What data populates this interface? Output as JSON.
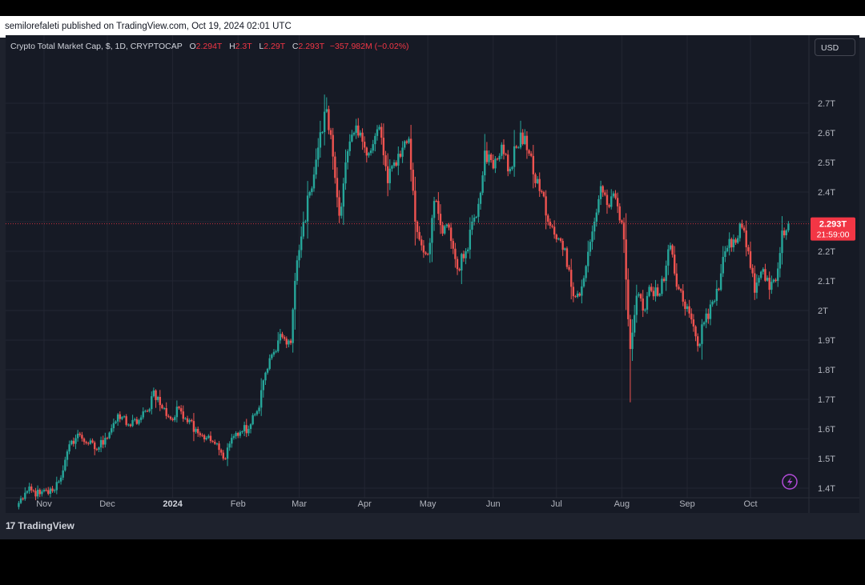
{
  "publish_bar": {
    "text": "semilorefaleti published on TradingView.com, Oct 19, 2024 02:01 UTC"
  },
  "legend": {
    "symbol": "Crypto Total Market Cap, $, 1D, CRYPTOCAP",
    "o_label": "O",
    "o_value": "2.294T",
    "h_label": "H",
    "h_value": "2.3T",
    "l_label": "L",
    "l_value": "2.29T",
    "c_label": "C",
    "c_value": "2.293T",
    "change": "−357.982M (−0.02%)"
  },
  "currency_button": {
    "label": "USD"
  },
  "price_tag": {
    "value": "2.293T",
    "countdown": "21:59:00"
  },
  "footer": {
    "brand": "TradingView",
    "logo_glyph": "17"
  },
  "colors": {
    "up": "#26a69a",
    "down": "#ef5350",
    "price_tag": "#f23645",
    "background": "#161a25",
    "grid": "#232632",
    "text": "#b2b5be"
  },
  "icons": {
    "lightning": "lightning-icon"
  },
  "chart_data": {
    "type": "candlestick",
    "title": "Crypto Total Market Cap, $, 1D, CRYPTOCAP",
    "xlabel": "",
    "ylabel": "",
    "ylim": [
      1.33,
      2.83
    ],
    "grid": true,
    "y_ticks": [
      1.4,
      1.5,
      1.6,
      1.7,
      1.8,
      1.9,
      2.0,
      2.1,
      2.2,
      2.3,
      2.4,
      2.5,
      2.6,
      2.7
    ],
    "y_tick_labels": [
      "1.4T",
      "1.5T",
      "1.6T",
      "1.7T",
      "1.8T",
      "1.9T",
      "2T",
      "2.1T",
      "2.2T",
      "2.3T",
      "2.4T",
      "2.5T",
      "2.6T",
      "2.7T"
    ],
    "x_tick_labels": [
      {
        "label": "Nov",
        "date": "2023-11-01"
      },
      {
        "label": "Dec",
        "date": "2023-12-01"
      },
      {
        "label": "2024",
        "date": "2024-01-01"
      },
      {
        "label": "Feb",
        "date": "2024-02-01"
      },
      {
        "label": "Mar",
        "date": "2024-03-01"
      },
      {
        "label": "Apr",
        "date": "2024-04-01"
      },
      {
        "label": "May",
        "date": "2024-05-01"
      },
      {
        "label": "Jun",
        "date": "2024-06-01"
      },
      {
        "label": "Jul",
        "date": "2024-07-01"
      },
      {
        "label": "Aug",
        "date": "2024-08-01"
      },
      {
        "label": "Sep",
        "date": "2024-09-01"
      },
      {
        "label": "Oct",
        "date": "2024-10-01"
      }
    ],
    "first_date": "2023-10-20",
    "last_date": "2024-10-19",
    "last_price": 2.293,
    "close_anchors": [
      [
        "2023-10-20",
        1.35
      ],
      [
        "2023-10-24",
        1.39
      ],
      [
        "2023-10-30",
        1.38
      ],
      [
        "2023-11-05",
        1.39
      ],
      [
        "2023-11-10",
        1.46
      ],
      [
        "2023-11-14",
        1.56
      ],
      [
        "2023-11-18",
        1.58
      ],
      [
        "2023-11-22",
        1.55
      ],
      [
        "2023-11-26",
        1.53
      ],
      [
        "2023-11-30",
        1.57
      ],
      [
        "2023-12-04",
        1.62
      ],
      [
        "2023-12-08",
        1.64
      ],
      [
        "2023-12-12",
        1.61
      ],
      [
        "2023-12-16",
        1.63
      ],
      [
        "2023-12-20",
        1.66
      ],
      [
        "2023-12-23",
        1.73
      ],
      [
        "2023-12-27",
        1.67
      ],
      [
        "2024-01-01",
        1.63
      ],
      [
        "2024-01-04",
        1.67
      ],
      [
        "2024-01-09",
        1.63
      ],
      [
        "2024-01-12",
        1.6
      ],
      [
        "2024-01-17",
        1.57
      ],
      [
        "2024-01-21",
        1.55
      ],
      [
        "2024-01-25",
        1.5
      ],
      [
        "2024-01-29",
        1.57
      ],
      [
        "2024-02-02",
        1.59
      ],
      [
        "2024-02-06",
        1.6
      ],
      [
        "2024-02-10",
        1.66
      ],
      [
        "2024-02-14",
        1.79
      ],
      [
        "2024-02-18",
        1.86
      ],
      [
        "2024-02-22",
        1.91
      ],
      [
        "2024-02-26",
        1.89
      ],
      [
        "2024-02-28",
        2.1
      ],
      [
        "2024-03-02",
        2.25
      ],
      [
        "2024-03-06",
        2.4
      ],
      [
        "2024-03-10",
        2.55
      ],
      [
        "2024-03-14",
        2.68
      ],
      [
        "2024-03-17",
        2.52
      ],
      [
        "2024-03-20",
        2.32
      ],
      [
        "2024-03-23",
        2.5
      ],
      [
        "2024-03-27",
        2.6
      ],
      [
        "2024-03-31",
        2.57
      ],
      [
        "2024-04-04",
        2.54
      ],
      [
        "2024-04-08",
        2.62
      ],
      [
        "2024-04-12",
        2.43
      ],
      [
        "2024-04-15",
        2.5
      ],
      [
        "2024-04-19",
        2.55
      ],
      [
        "2024-04-22",
        2.58
      ],
      [
        "2024-04-25",
        2.3
      ],
      [
        "2024-04-28",
        2.22
      ],
      [
        "2024-05-01",
        2.19
      ],
      [
        "2024-05-04",
        2.37
      ],
      [
        "2024-05-08",
        2.26
      ],
      [
        "2024-05-11",
        2.28
      ],
      [
        "2024-05-15",
        2.14
      ],
      [
        "2024-05-19",
        2.2
      ],
      [
        "2024-05-22",
        2.3
      ],
      [
        "2024-05-25",
        2.36
      ],
      [
        "2024-05-28",
        2.54
      ],
      [
        "2024-06-01",
        2.48
      ],
      [
        "2024-06-05",
        2.56
      ],
      [
        "2024-06-08",
        2.47
      ],
      [
        "2024-06-12",
        2.55
      ],
      [
        "2024-06-16",
        2.59
      ],
      [
        "2024-06-20",
        2.46
      ],
      [
        "2024-06-24",
        2.4
      ],
      [
        "2024-06-27",
        2.3
      ],
      [
        "2024-07-01",
        2.24
      ],
      [
        "2024-07-05",
        2.21
      ],
      [
        "2024-07-08",
        2.08
      ],
      [
        "2024-07-12",
        2.05
      ],
      [
        "2024-07-15",
        2.15
      ],
      [
        "2024-07-19",
        2.3
      ],
      [
        "2024-07-22",
        2.42
      ],
      [
        "2024-07-26",
        2.35
      ],
      [
        "2024-07-29",
        2.38
      ],
      [
        "2024-08-02",
        2.24
      ],
      [
        "2024-08-05",
        1.87
      ],
      [
        "2024-08-08",
        2.05
      ],
      [
        "2024-08-11",
        2.0
      ],
      [
        "2024-08-14",
        2.08
      ],
      [
        "2024-08-18",
        2.05
      ],
      [
        "2024-08-21",
        2.1
      ],
      [
        "2024-08-24",
        2.22
      ],
      [
        "2024-08-27",
        2.08
      ],
      [
        "2024-08-30",
        2.03
      ],
      [
        "2024-09-03",
        1.97
      ],
      [
        "2024-09-06",
        1.88
      ],
      [
        "2024-09-09",
        1.96
      ],
      [
        "2024-09-13",
        2.03
      ],
      [
        "2024-09-16",
        2.07
      ],
      [
        "2024-09-19",
        2.2
      ],
      [
        "2024-09-23",
        2.24
      ],
      [
        "2024-09-27",
        2.28
      ],
      [
        "2024-09-30",
        2.2
      ],
      [
        "2024-10-03",
        2.06
      ],
      [
        "2024-10-07",
        2.14
      ],
      [
        "2024-10-10",
        2.07
      ],
      [
        "2024-10-13",
        2.1
      ],
      [
        "2024-10-16",
        2.27
      ],
      [
        "2024-10-19",
        2.293
      ]
    ],
    "notable_wicks": [
      {
        "date": "2024-03-14",
        "high": 2.72
      },
      {
        "date": "2024-08-05",
        "low": 1.69
      }
    ]
  }
}
